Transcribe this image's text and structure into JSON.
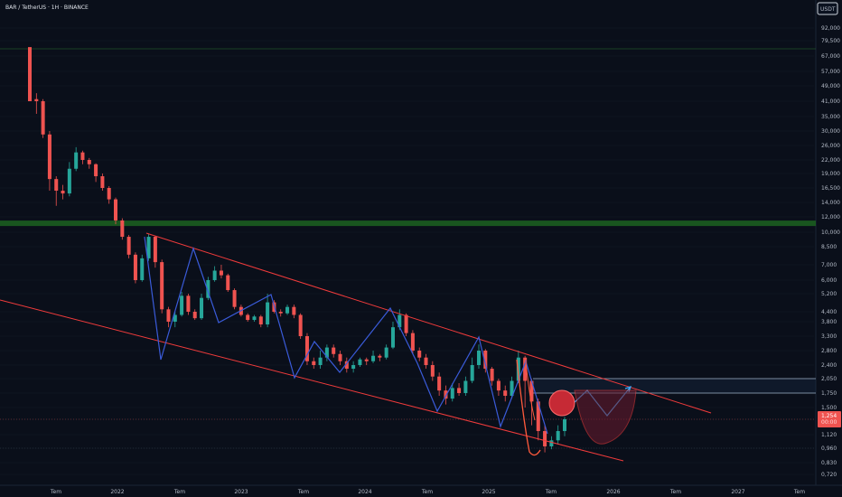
{
  "header": {
    "symbol_text": "BAR / TetherUS · 1H · BINANCE"
  },
  "price_axis": {
    "currency": "USDT",
    "ticks": [
      "92,000",
      "79,500",
      "67,000",
      "57,000",
      "49,000",
      "41,000",
      "35,000",
      "30,000",
      "26,000",
      "22,000",
      "19,000",
      "16,500",
      "14,000",
      "12,000",
      "10,000",
      "8,500",
      "7,000",
      "6,000",
      "5,200",
      "4,400",
      "3,800",
      "3,300",
      "2,800",
      "2,400",
      "2,050",
      "1,750",
      "1,500",
      "1,250",
      "1,120",
      "0,960",
      "0,830",
      "0,720"
    ],
    "current_price_box": {
      "line1": "1,254",
      "line2": "00:00"
    }
  },
  "time_axis": {
    "labels": [
      "Tem",
      "2022",
      "Tem",
      "2023",
      "Tem",
      "2024",
      "Tem",
      "2025",
      "Tem",
      "2026",
      "Tem",
      "2027",
      "Tem"
    ]
  },
  "colors": {
    "background": "#0a0f1a",
    "grid": "#152130",
    "bull": "#26a69a",
    "bear": "#ef5350",
    "channel": "#ef3b3b",
    "projection": "#3a5bd9",
    "resistance": "#1b5e20",
    "current_price": "#ef5350"
  },
  "chart_data": {
    "type": "candlestick",
    "symbol": "BAR",
    "quote": "USDT",
    "interval": "1H",
    "exchange": "BINANCE",
    "y_scale": "log",
    "ylim": [
      0.72,
      92
    ],
    "x_labels": [
      "Tem",
      "2022",
      "Tem",
      "2023",
      "Tem",
      "2024",
      "Tem",
      "2025",
      "Tem",
      "2026",
      "Tem",
      "2027",
      "Tem"
    ],
    "price_ticks": [
      92,
      79.5,
      67,
      57,
      49,
      41,
      35,
      30,
      26,
      22,
      19,
      16.5,
      14,
      12,
      10,
      8.5,
      7,
      6,
      5.2,
      4.4,
      3.8,
      3.3,
      2.8,
      2.4,
      2.05,
      1.75,
      1.5,
      1.254,
      1.12,
      0.96,
      0.83,
      0.72
    ],
    "series": [
      {
        "values": [
          [
            74.0,
            41.0,
            50.0,
            42.0
          ],
          [
            42.0,
            41.0,
            45.0,
            36.0
          ],
          [
            41.0,
            29.0,
            42.0,
            28.0
          ],
          [
            29.0,
            18.0,
            30.0,
            16.0
          ],
          [
            18.0,
            16.0,
            18.5,
            13.5
          ],
          [
            16.0,
            15.5,
            17.0,
            14.5
          ],
          [
            15.5,
            20.0,
            21.5,
            15.0
          ],
          [
            20.0,
            24.0,
            25.5,
            19.5
          ],
          [
            24.0,
            22.0,
            24.5,
            21.0
          ],
          [
            22.0,
            21.0,
            22.5,
            20.0
          ],
          [
            21.0,
            18.5,
            21.2,
            17.5
          ],
          [
            18.5,
            16.5,
            19.0,
            16.0
          ],
          [
            16.5,
            14.5,
            16.8,
            13.8
          ],
          [
            14.5,
            11.5,
            14.8,
            11.0
          ],
          [
            11.5,
            9.5,
            11.8,
            9.2
          ],
          [
            9.5,
            7.8,
            9.7,
            7.5
          ],
          [
            7.8,
            6.0,
            8.0,
            5.8
          ],
          [
            6.0,
            7.5,
            7.8,
            5.9
          ],
          [
            7.5,
            9.5,
            9.8,
            7.3
          ],
          [
            9.5,
            7.2,
            9.6,
            6.8
          ],
          [
            7.2,
            4.5,
            7.4,
            4.3
          ],
          [
            4.5,
            3.8,
            4.6,
            3.6
          ],
          [
            3.8,
            4.2,
            4.4,
            3.6
          ],
          [
            4.2,
            5.1,
            5.3,
            4.1
          ],
          [
            5.1,
            4.4,
            5.2,
            4.2
          ],
          [
            4.4,
            4.0,
            4.5,
            3.9
          ],
          [
            4.0,
            5.0,
            5.2,
            3.9
          ],
          [
            5.0,
            6.0,
            6.2,
            4.9
          ],
          [
            6.0,
            6.6,
            6.9,
            5.9
          ],
          [
            6.6,
            6.3,
            7.0,
            6.1
          ],
          [
            6.3,
            5.4,
            6.4,
            5.3
          ],
          [
            5.4,
            4.6,
            5.5,
            4.5
          ],
          [
            4.6,
            4.2,
            4.7,
            4.1
          ],
          [
            4.2,
            3.9,
            4.3,
            3.8
          ],
          [
            3.9,
            4.1,
            4.2,
            3.8
          ],
          [
            4.1,
            3.7,
            4.2,
            3.6
          ],
          [
            3.7,
            4.8,
            5.2,
            3.6
          ],
          [
            4.8,
            4.4,
            4.9,
            4.3
          ],
          [
            4.4,
            4.3,
            4.5,
            4.1
          ],
          [
            4.3,
            4.6,
            4.7,
            4.2
          ],
          [
            4.6,
            4.2,
            4.7,
            4.0
          ],
          [
            4.2,
            3.3,
            4.3,
            3.2
          ],
          [
            3.3,
            2.5,
            3.4,
            2.4
          ],
          [
            2.5,
            2.4,
            2.6,
            2.3
          ],
          [
            2.4,
            2.6,
            2.8,
            2.3
          ],
          [
            2.6,
            2.9,
            3.0,
            2.5
          ],
          [
            2.9,
            2.7,
            3.0,
            2.6
          ],
          [
            2.7,
            2.5,
            2.8,
            2.4
          ],
          [
            2.5,
            2.3,
            2.6,
            2.2
          ],
          [
            2.3,
            2.4,
            2.5,
            2.2
          ],
          [
            2.4,
            2.55,
            2.6,
            2.35
          ],
          [
            2.55,
            2.5,
            2.6,
            2.4
          ],
          [
            2.5,
            2.65,
            2.8,
            2.45
          ],
          [
            2.65,
            2.6,
            2.7,
            2.5
          ],
          [
            2.6,
            2.9,
            3.0,
            2.55
          ],
          [
            2.9,
            3.6,
            3.8,
            2.85
          ],
          [
            3.6,
            4.2,
            4.5,
            3.5
          ],
          [
            4.2,
            3.4,
            4.3,
            3.3
          ],
          [
            3.4,
            2.8,
            3.5,
            2.7
          ],
          [
            2.8,
            2.6,
            2.9,
            2.5
          ],
          [
            2.6,
            2.4,
            2.7,
            2.3
          ],
          [
            2.4,
            2.1,
            2.5,
            2.0
          ],
          [
            2.1,
            1.8,
            2.2,
            1.7
          ],
          [
            1.8,
            1.65,
            1.9,
            1.55
          ],
          [
            1.65,
            1.85,
            1.95,
            1.6
          ],
          [
            1.85,
            1.75,
            1.95,
            1.7
          ],
          [
            1.75,
            2.0,
            2.1,
            1.7
          ],
          [
            2.0,
            2.4,
            2.6,
            1.95
          ],
          [
            2.4,
            2.8,
            3.0,
            2.3
          ],
          [
            2.8,
            2.3,
            2.85,
            2.2
          ],
          [
            2.3,
            2.0,
            2.35,
            1.9
          ],
          [
            2.0,
            1.8,
            2.05,
            1.7
          ],
          [
            1.8,
            1.7,
            1.9,
            1.6
          ],
          [
            1.7,
            2.0,
            2.1,
            1.65
          ],
          [
            2.0,
            2.6,
            2.8,
            1.95
          ],
          [
            2.6,
            2.0,
            2.65,
            1.5
          ],
          [
            2.0,
            1.6,
            2.05,
            1.2
          ],
          [
            1.6,
            1.15,
            1.65,
            1.05
          ],
          [
            1.15,
            0.98,
            1.2,
            0.92
          ],
          [
            0.98,
            1.05,
            1.1,
            0.95
          ],
          [
            1.05,
            1.15,
            1.2,
            1.0
          ],
          [
            1.15,
            1.254,
            1.3,
            1.1
          ]
        ]
      }
    ],
    "annotations": {
      "descending_channel": "red parallel lines",
      "resistance_zone": "~11",
      "target_zone": "~1.75-2.05",
      "projection": "blue zigzag path",
      "cup_shape": "red cup / circle near current price"
    }
  }
}
